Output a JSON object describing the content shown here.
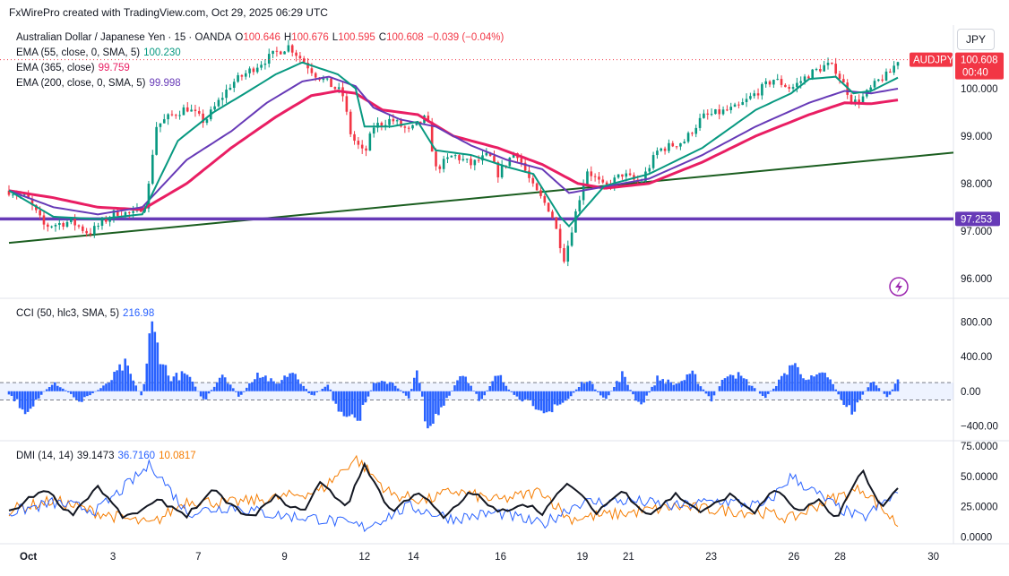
{
  "header": {
    "text": "FxWirePro created with TradingView.com, Oct 29, 2025 06:29 UTC"
  },
  "symbol": {
    "name": "Australian Dollar / Japanese Yen · 15 · OANDA",
    "o_label": "O",
    "o": "100.646",
    "h_label": "H",
    "h": "100.676",
    "l_label": "L",
    "l": "100.595",
    "c_label": "C",
    "c": "100.608",
    "change": "−0.039 (−0.04%)",
    "currency": "JPY",
    "ticker": "AUDJPY",
    "last_price": "100.608",
    "countdown": "00:40"
  },
  "indicators": {
    "ema55": {
      "label": "EMA (55, close, 0, SMA, 5)",
      "value": "100.230",
      "color": "#089981"
    },
    "ema365": {
      "label": "EMA (365, close)",
      "value": "99.759",
      "color": "#e91e63"
    },
    "ema200": {
      "label": "EMA (200, close, 0, SMA, 5)",
      "value": "99.998",
      "color": "#673ab7"
    },
    "cci": {
      "label": "CCI (50, hlc3, SMA, 5)",
      "value": "216.98",
      "color": "#2962ff"
    },
    "dmi": {
      "label": "DMI (14, 14)",
      "adx": "39.1473",
      "plus_di": "36.7160",
      "minus_di": "10.0817",
      "adx_color": "#131722",
      "plus_color": "#2962ff",
      "minus_color": "#f57c00"
    }
  },
  "chart_data": [
    {
      "type": "candlestick",
      "pane": "price",
      "ylim": [
        95.6,
        101.3
      ],
      "y_ticks": [
        "100.000",
        "99.000",
        "98.000",
        "97.000",
        "96.000"
      ],
      "x_ticks": [
        "Oct",
        "3",
        "7",
        "9",
        "12",
        "14",
        "16",
        "19",
        "21",
        "23",
        "26",
        "28",
        "30"
      ],
      "support_level": {
        "value": 97.253,
        "label": "97.253",
        "color": "#673ab7"
      },
      "trendline": {
        "from": [
          0,
          96.75
        ],
        "to": [
          1,
          98.65
        ],
        "color": "#1b5e20"
      },
      "close_path": [
        [
          0,
          97.85
        ],
        [
          0.02,
          97.7
        ],
        [
          0.04,
          97.1
        ],
        [
          0.07,
          97.2
        ],
        [
          0.09,
          96.95
        ],
        [
          0.12,
          97.4
        ],
        [
          0.14,
          97.35
        ],
        [
          0.155,
          97.6
        ],
        [
          0.165,
          99.2
        ],
        [
          0.18,
          99.4
        ],
        [
          0.2,
          99.6
        ],
        [
          0.22,
          99.3
        ],
        [
          0.25,
          100.1
        ],
        [
          0.28,
          100.5
        ],
        [
          0.3,
          100.75
        ],
        [
          0.315,
          100.9
        ],
        [
          0.33,
          100.6
        ],
        [
          0.345,
          100.3
        ],
        [
          0.36,
          100.1
        ],
        [
          0.375,
          99.9
        ],
        [
          0.385,
          99.0
        ],
        [
          0.4,
          98.6
        ],
        [
          0.41,
          99.2
        ],
        [
          0.43,
          99.35
        ],
        [
          0.45,
          99.1
        ],
        [
          0.47,
          99.4
        ],
        [
          0.48,
          98.3
        ],
        [
          0.5,
          98.6
        ],
        [
          0.52,
          98.4
        ],
        [
          0.54,
          98.6
        ],
        [
          0.55,
          98.2
        ],
        [
          0.57,
          98.7
        ],
        [
          0.59,
          97.9
        ],
        [
          0.61,
          97.4
        ],
        [
          0.625,
          96.4
        ],
        [
          0.635,
          97.2
        ],
        [
          0.65,
          98.3
        ],
        [
          0.67,
          97.9
        ],
        [
          0.69,
          98.2
        ],
        [
          0.71,
          98.0
        ],
        [
          0.73,
          98.7
        ],
        [
          0.76,
          98.9
        ],
        [
          0.78,
          99.4
        ],
        [
          0.8,
          99.5
        ],
        [
          0.82,
          99.6
        ],
        [
          0.84,
          99.9
        ],
        [
          0.86,
          100.2
        ],
        [
          0.88,
          100.0
        ],
        [
          0.9,
          100.3
        ],
        [
          0.92,
          100.5
        ],
        [
          0.93,
          100.4
        ],
        [
          0.95,
          99.7
        ],
        [
          0.96,
          99.8
        ],
        [
          0.98,
          100.2
        ],
        [
          0.99,
          100.3
        ],
        [
          1,
          100.61
        ]
      ],
      "ema_paths": {
        "ema55": [
          [
            0,
            97.85
          ],
          [
            0.05,
            97.3
          ],
          [
            0.1,
            97.25
          ],
          [
            0.15,
            97.35
          ],
          [
            0.19,
            98.9
          ],
          [
            0.23,
            99.5
          ],
          [
            0.27,
            99.95
          ],
          [
            0.3,
            100.3
          ],
          [
            0.33,
            100.55
          ],
          [
            0.37,
            100.3
          ],
          [
            0.39,
            100.0
          ],
          [
            0.4,
            99.2
          ],
          [
            0.43,
            99.2
          ],
          [
            0.46,
            99.3
          ],
          [
            0.48,
            98.7
          ],
          [
            0.52,
            98.6
          ],
          [
            0.56,
            98.35
          ],
          [
            0.59,
            98.2
          ],
          [
            0.62,
            97.3
          ],
          [
            0.63,
            97.1
          ],
          [
            0.67,
            97.95
          ],
          [
            0.72,
            98.2
          ],
          [
            0.78,
            98.75
          ],
          [
            0.84,
            99.55
          ],
          [
            0.88,
            99.9
          ],
          [
            0.9,
            100.2
          ],
          [
            0.93,
            100.25
          ],
          [
            0.95,
            99.9
          ],
          [
            0.97,
            99.95
          ],
          [
            1,
            100.23
          ]
        ],
        "ema200": [
          [
            0,
            97.85
          ],
          [
            0.05,
            97.5
          ],
          [
            0.1,
            97.35
          ],
          [
            0.15,
            97.5
          ],
          [
            0.2,
            98.5
          ],
          [
            0.25,
            99.1
          ],
          [
            0.29,
            99.7
          ],
          [
            0.33,
            100.15
          ],
          [
            0.36,
            100.25
          ],
          [
            0.39,
            100.05
          ],
          [
            0.41,
            99.6
          ],
          [
            0.44,
            99.35
          ],
          [
            0.48,
            99.2
          ],
          [
            0.52,
            98.8
          ],
          [
            0.56,
            98.5
          ],
          [
            0.6,
            98.3
          ],
          [
            0.63,
            97.8
          ],
          [
            0.66,
            97.9
          ],
          [
            0.72,
            98.1
          ],
          [
            0.78,
            98.6
          ],
          [
            0.84,
            99.2
          ],
          [
            0.9,
            99.7
          ],
          [
            0.94,
            99.95
          ],
          [
            0.97,
            99.9
          ],
          [
            1,
            99.998
          ]
        ],
        "ema365": [
          [
            0,
            97.85
          ],
          [
            0.05,
            97.7
          ],
          [
            0.1,
            97.5
          ],
          [
            0.15,
            97.45
          ],
          [
            0.2,
            98.0
          ],
          [
            0.25,
            98.75
          ],
          [
            0.3,
            99.4
          ],
          [
            0.34,
            99.85
          ],
          [
            0.37,
            99.95
          ],
          [
            0.39,
            99.9
          ],
          [
            0.42,
            99.55
          ],
          [
            0.46,
            99.45
          ],
          [
            0.5,
            99.0
          ],
          [
            0.55,
            98.75
          ],
          [
            0.6,
            98.4
          ],
          [
            0.64,
            98.0
          ],
          [
            0.67,
            97.9
          ],
          [
            0.72,
            98.0
          ],
          [
            0.78,
            98.45
          ],
          [
            0.84,
            99.0
          ],
          [
            0.9,
            99.45
          ],
          [
            0.94,
            99.7
          ],
          [
            0.97,
            99.68
          ],
          [
            1,
            99.759
          ]
        ]
      }
    },
    {
      "type": "histogram",
      "pane": "cci",
      "ylim": [
        -550,
        1000
      ],
      "y_ticks": [
        "800.00",
        "400.00",
        "0.00",
        "−400.00"
      ],
      "band": [
        -100,
        100
      ],
      "envelope": [
        [
          0,
          -50
        ],
        [
          0.02,
          -300
        ],
        [
          0.05,
          150
        ],
        [
          0.08,
          -150
        ],
        [
          0.11,
          100
        ],
        [
          0.13,
          400
        ],
        [
          0.15,
          -100
        ],
        [
          0.16,
          950
        ],
        [
          0.18,
          200
        ],
        [
          0.2,
          250
        ],
        [
          0.22,
          -150
        ],
        [
          0.24,
          280
        ],
        [
          0.26,
          -100
        ],
        [
          0.28,
          300
        ],
        [
          0.3,
          100
        ],
        [
          0.32,
          320
        ],
        [
          0.34,
          -80
        ],
        [
          0.36,
          100
        ],
        [
          0.37,
          -350
        ],
        [
          0.39,
          -500
        ],
        [
          0.41,
          100
        ],
        [
          0.43,
          150
        ],
        [
          0.45,
          -100
        ],
        [
          0.46,
          350
        ],
        [
          0.47,
          -520
        ],
        [
          0.49,
          -200
        ],
        [
          0.51,
          300
        ],
        [
          0.53,
          -150
        ],
        [
          0.55,
          250
        ],
        [
          0.57,
          -100
        ],
        [
          0.59,
          -200
        ],
        [
          0.61,
          -300
        ],
        [
          0.63,
          -100
        ],
        [
          0.65,
          200
        ],
        [
          0.67,
          -150
        ],
        [
          0.69,
          250
        ],
        [
          0.71,
          -250
        ],
        [
          0.73,
          200
        ],
        [
          0.75,
          100
        ],
        [
          0.77,
          250
        ],
        [
          0.79,
          -150
        ],
        [
          0.81,
          320
        ],
        [
          0.83,
          150
        ],
        [
          0.85,
          -100
        ],
        [
          0.87,
          200
        ],
        [
          0.88,
          420
        ],
        [
          0.9,
          180
        ],
        [
          0.92,
          250
        ],
        [
          0.94,
          -200
        ],
        [
          0.95,
          -300
        ],
        [
          0.97,
          150
        ],
        [
          0.99,
          -100
        ],
        [
          1,
          216.98
        ]
      ]
    },
    {
      "type": "line",
      "pane": "dmi",
      "ylim": [
        -5,
        75
      ],
      "y_ticks": [
        "75.0000",
        "50.0000",
        "25.0000",
        "0.0000"
      ],
      "series": [
        {
          "name": "ADX",
          "values_env": [
            [
              0,
              20
            ],
            [
              0.04,
              40
            ],
            [
              0.07,
              18
            ],
            [
              0.1,
              42
            ],
            [
              0.13,
              15
            ],
            [
              0.17,
              30
            ],
            [
              0.2,
              18
            ],
            [
              0.23,
              38
            ],
            [
              0.27,
              15
            ],
            [
              0.3,
              33
            ],
            [
              0.33,
              20
            ],
            [
              0.35,
              45
            ],
            [
              0.38,
              25
            ],
            [
              0.4,
              60
            ],
            [
              0.43,
              20
            ],
            [
              0.46,
              38
            ],
            [
              0.49,
              15
            ],
            [
              0.52,
              38
            ],
            [
              0.55,
              20
            ],
            [
              0.58,
              28
            ],
            [
              0.6,
              20
            ],
            [
              0.63,
              45
            ],
            [
              0.66,
              20
            ],
            [
              0.69,
              38
            ],
            [
              0.72,
              18
            ],
            [
              0.75,
              35
            ],
            [
              0.78,
              20
            ],
            [
              0.81,
              35
            ],
            [
              0.84,
              20
            ],
            [
              0.86,
              40
            ],
            [
              0.89,
              20
            ],
            [
              0.91,
              30
            ],
            [
              0.93,
              15
            ],
            [
              0.96,
              55
            ],
            [
              0.98,
              25
            ],
            [
              1,
              39.15
            ]
          ]
        },
        {
          "name": "+DI",
          "values_env": [
            [
              0,
              20
            ],
            [
              0.05,
              28
            ],
            [
              0.1,
              22
            ],
            [
              0.16,
              60
            ],
            [
              0.2,
              20
            ],
            [
              0.25,
              25
            ],
            [
              0.3,
              18
            ],
            [
              0.35,
              15
            ],
            [
              0.4,
              8
            ],
            [
              0.45,
              25
            ],
            [
              0.5,
              15
            ],
            [
              0.55,
              20
            ],
            [
              0.6,
              10
            ],
            [
              0.64,
              28
            ],
            [
              0.7,
              30
            ],
            [
              0.75,
              25
            ],
            [
              0.8,
              30
            ],
            [
              0.85,
              25
            ],
            [
              0.88,
              50
            ],
            [
              0.9,
              40
            ],
            [
              0.93,
              25
            ],
            [
              0.96,
              15
            ],
            [
              1,
              36.72
            ]
          ]
        },
        {
          "name": "−DI",
          "values_env": [
            [
              0,
              22
            ],
            [
              0.05,
              30
            ],
            [
              0.1,
              20
            ],
            [
              0.16,
              10
            ],
            [
              0.2,
              30
            ],
            [
              0.25,
              28
            ],
            [
              0.3,
              32
            ],
            [
              0.35,
              38
            ],
            [
              0.39,
              65
            ],
            [
              0.43,
              35
            ],
            [
              0.47,
              30
            ],
            [
              0.5,
              38
            ],
            [
              0.55,
              30
            ],
            [
              0.6,
              38
            ],
            [
              0.63,
              15
            ],
            [
              0.7,
              20
            ],
            [
              0.75,
              25
            ],
            [
              0.8,
              22
            ],
            [
              0.85,
              20
            ],
            [
              0.88,
              15
            ],
            [
              0.92,
              30
            ],
            [
              0.96,
              40
            ],
            [
              1,
              10.08
            ]
          ]
        }
      ]
    }
  ]
}
